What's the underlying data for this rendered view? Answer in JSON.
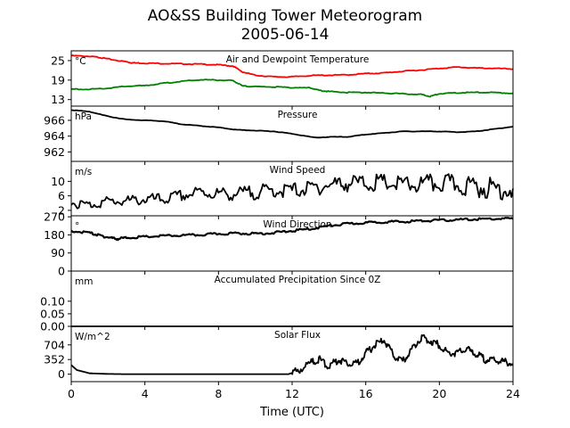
{
  "figure": {
    "title_line1": "AO&SS Building Tower Meteorogram",
    "title_line2": "2005-06-14",
    "xlabel": "Time (UTC)"
  },
  "chart_data": [
    {
      "type": "line",
      "title": "Air and Dewpoint Temperature",
      "unit_label": "°C",
      "yticks": [
        13,
        19,
        25
      ],
      "ylim": [
        11,
        28
      ],
      "xlim": [
        0,
        24
      ],
      "series": [
        {
          "color": "#ff0000",
          "x": [
            0,
            1,
            1.5,
            2,
            3,
            3.3,
            4,
            5,
            6,
            7,
            8,
            8.8,
            9.3,
            10,
            11,
            12,
            13,
            14,
            15,
            16,
            17,
            18,
            19,
            20,
            21,
            22,
            23,
            24
          ],
          "y": [
            26.5,
            26.3,
            26,
            25.5,
            24.6,
            24.3,
            24.2,
            24.1,
            24,
            23.9,
            23.7,
            23.3,
            21.5,
            20.5,
            20,
            20,
            20.4,
            20.5,
            20.6,
            21.0,
            21.2,
            21.7,
            22.1,
            22.6,
            23,
            22.7,
            22.6,
            22.4
          ]
        },
        {
          "color": "#008000",
          "x": [
            0,
            1,
            2,
            3,
            4,
            5,
            6,
            7,
            8,
            8.8,
            9.3,
            10,
            11,
            12,
            13,
            13.5,
            14,
            15,
            16,
            17,
            18,
            19,
            19.5,
            20,
            21,
            22,
            23,
            24
          ],
          "y": [
            16.2,
            16.2,
            16.5,
            17.1,
            17.3,
            18,
            18.6,
            19.1,
            19,
            18.8,
            17.2,
            17,
            16.9,
            16.7,
            16.6,
            15.8,
            15.5,
            15.2,
            15.2,
            15,
            14.8,
            14.6,
            14,
            14.8,
            15.1,
            15.2,
            15.2,
            14.9
          ]
        }
      ]
    },
    {
      "type": "line",
      "title": "Pressure",
      "unit_label": "hPa",
      "yticks": [
        962,
        964,
        966
      ],
      "ylim": [
        960.8,
        967.8
      ],
      "xlim": [
        0,
        24
      ],
      "series": [
        {
          "color": "#000000",
          "x": [
            0,
            1,
            2,
            3,
            4,
            5,
            6,
            7,
            8,
            9,
            10,
            11,
            12,
            13,
            13.5,
            14,
            15,
            16,
            17,
            18,
            19,
            20,
            21,
            22,
            23,
            24
          ],
          "y": [
            967.3,
            967.1,
            966.5,
            966.1,
            966.0,
            965.9,
            965.5,
            965.3,
            965.1,
            964.8,
            964.7,
            964.6,
            964.3,
            963.9,
            963.8,
            963.9,
            963.9,
            964.2,
            964.4,
            964.6,
            964.6,
            964.6,
            964.5,
            964.6,
            964.9,
            965.2
          ]
        }
      ]
    },
    {
      "type": "line",
      "title": "Wind Speed",
      "unit_label": "m/s",
      "yticks": [
        2,
        6,
        10
      ],
      "ylim": [
        0.5,
        15.5
      ],
      "xlim": [
        0,
        24
      ],
      "series": [
        {
          "color": "#000000",
          "x": [
            0,
            1,
            2,
            3,
            4,
            5,
            6,
            7,
            8,
            9,
            10,
            11,
            12,
            13,
            14,
            15,
            16,
            17,
            18,
            19,
            20,
            21,
            22,
            23,
            24
          ],
          "y": [
            4,
            3.5,
            4.5,
            4.5,
            5,
            5,
            6,
            7,
            6.5,
            6.5,
            7,
            7.5,
            7.5,
            8,
            9,
            9.5,
            9.5,
            9.5,
            9,
            9,
            9.5,
            9,
            8.5,
            8,
            8
          ]
        }
      ]
    },
    {
      "type": "line",
      "title": "Wind Direction",
      "unit_label": "°",
      "yticks": [
        0,
        90,
        180,
        270
      ],
      "ylim": [
        0,
        275
      ],
      "xlim": [
        0,
        24
      ],
      "series": [
        {
          "color": "#000000",
          "x": [
            0,
            1,
            1.5,
            2,
            2.5,
            3,
            4,
            5,
            6,
            7,
            8,
            9,
            10,
            11,
            12,
            13,
            14,
            15,
            16,
            17,
            18,
            19,
            20,
            21,
            22,
            23,
            24
          ],
          "y": [
            200,
            190,
            178,
            168,
            160,
            166,
            170,
            175,
            177,
            180,
            185,
            188,
            186,
            190,
            200,
            210,
            225,
            235,
            240,
            245,
            245,
            250,
            252,
            255,
            258,
            260,
            260
          ]
        }
      ]
    },
    {
      "type": "area",
      "title": "Accumulated Precipitation Since 0Z",
      "unit_label": "mm",
      "yticks": [
        0.0,
        0.05,
        0.1
      ],
      "ytick_labels": [
        "0.00",
        "0.05",
        "0.10"
      ],
      "ylim": [
        0,
        0.22
      ],
      "xlim": [
        0,
        24
      ],
      "series": [
        {
          "color": "#000000",
          "x": [
            0,
            24
          ],
          "y": [
            0,
            0
          ]
        }
      ]
    },
    {
      "type": "line",
      "title": "Solar Flux",
      "unit_label": "W/m^2",
      "yticks": [
        0,
        352,
        704
      ],
      "ylim": [
        -180,
        1150
      ],
      "xlim": [
        0,
        24
      ],
      "series": [
        {
          "color": "#000000",
          "x": [
            0,
            0.3,
            1,
            2,
            3,
            4,
            5,
            6,
            7,
            8,
            9,
            10,
            11,
            11.8,
            12.3,
            13,
            13.5,
            14,
            14.5,
            15,
            15.5,
            16,
            16.5,
            17,
            17.5,
            18,
            18.5,
            19,
            19.5,
            20,
            20.5,
            21,
            21.5,
            22,
            22.5,
            23,
            23.5,
            24
          ],
          "y": [
            220,
            100,
            20,
            5,
            0,
            0,
            0,
            0,
            0,
            0,
            0,
            0,
            0,
            0,
            80,
            280,
            350,
            180,
            350,
            280,
            250,
            500,
            700,
            820,
            450,
            300,
            600,
            880,
            800,
            700,
            500,
            520,
            600,
            480,
            350,
            330,
            300,
            250
          ]
        }
      ]
    }
  ],
  "x_axis": {
    "ticks": [
      0,
      4,
      8,
      12,
      16,
      20,
      24
    ],
    "range": [
      0,
      24
    ]
  }
}
